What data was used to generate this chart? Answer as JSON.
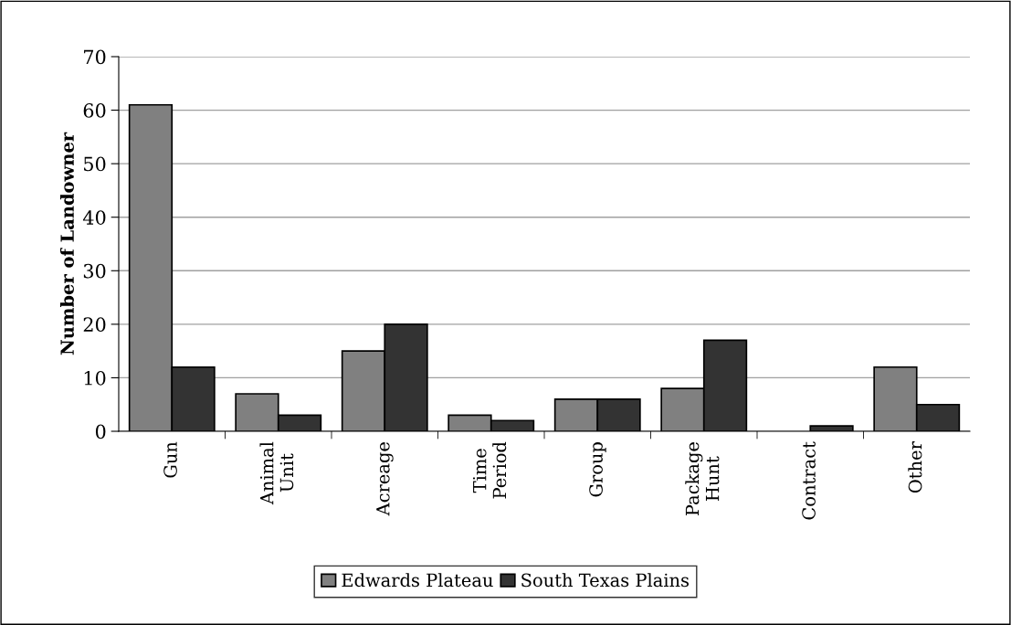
{
  "chart_data": {
    "type": "bar",
    "ylabel": "Number of Landowner",
    "categories": [
      "Gun",
      "Animal\nUnit",
      "Acreage",
      "Time\nPeriod",
      "Group",
      "Package\nHunt",
      "Contract",
      "Other"
    ],
    "series": [
      {
        "name": "Edwards Plateau",
        "color": "#808080",
        "values": [
          61,
          7,
          15,
          3,
          6,
          8,
          0,
          12
        ]
      },
      {
        "name": "South Texas Plains",
        "color": "#333333",
        "values": [
          12,
          3,
          20,
          2,
          6,
          17,
          1,
          5
        ]
      }
    ],
    "ylim": [
      0,
      70
    ],
    "yticks": [
      0,
      10,
      20,
      30,
      40,
      50,
      60,
      70
    ],
    "grid": "y",
    "legend": "bottom"
  }
}
